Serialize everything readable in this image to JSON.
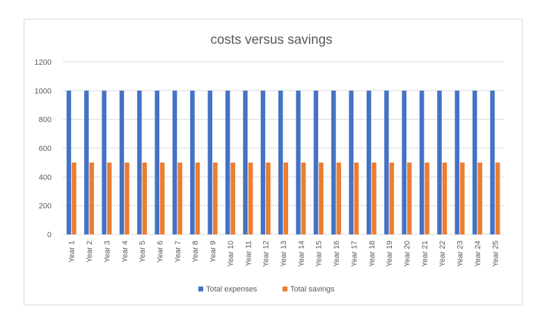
{
  "chart_data": {
    "type": "bar",
    "title": "costs versus savings",
    "xlabel": "",
    "ylabel": "",
    "ylim": [
      0,
      1200
    ],
    "yticks": [
      0,
      200,
      400,
      600,
      800,
      1000,
      1200
    ],
    "grid": true,
    "legend_position": "bottom",
    "categories": [
      "Year 1",
      "Year 2",
      "Year 3",
      "Year 4",
      "Year 5",
      "Year 6",
      "Year 7",
      "Year 8",
      "Year 9",
      "Year 10",
      "Year 11",
      "Year 12",
      "Year 13",
      "Year 14",
      "Year 15",
      "Year 16",
      "Year 17",
      "Year 18",
      "Year 19",
      "Year 20",
      "Year 21",
      "Year 22",
      "Year 23",
      "Year 24",
      "Year 25"
    ],
    "series": [
      {
        "name": "Total expenses",
        "color": "#4472C4",
        "values": [
          1000,
          1000,
          1000,
          1000,
          1000,
          1000,
          1000,
          1000,
          1000,
          1000,
          1000,
          1000,
          1000,
          1000,
          1000,
          1000,
          1000,
          1000,
          1000,
          1000,
          1000,
          1000,
          1000,
          1000,
          1000
        ]
      },
      {
        "name": "Total savings",
        "color": "#ED7D31",
        "values": [
          500,
          500,
          500,
          500,
          500,
          500,
          500,
          500,
          500,
          500,
          500,
          500,
          500,
          500,
          500,
          500,
          500,
          500,
          500,
          500,
          500,
          500,
          500,
          500,
          500
        ]
      }
    ]
  }
}
